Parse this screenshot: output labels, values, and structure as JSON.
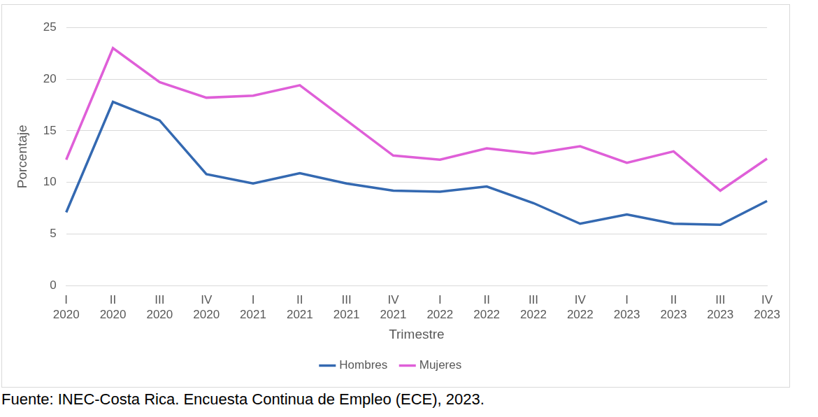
{
  "chart_data": {
    "type": "line",
    "x_label": "Trimestre",
    "y_label": "Porcentaje",
    "source": "Fuente: INEC-Costa Rica. Encuesta Continua de Empleo (ECE), 2023.",
    "categories": [
      [
        "I",
        "2020"
      ],
      [
        "II",
        "2020"
      ],
      [
        "III",
        "2020"
      ],
      [
        "IV",
        "2020"
      ],
      [
        "I",
        "2021"
      ],
      [
        "II",
        "2021"
      ],
      [
        "III",
        "2021"
      ],
      [
        "IV",
        "2021"
      ],
      [
        "I",
        "2022"
      ],
      [
        "II",
        "2022"
      ],
      [
        "III",
        "2022"
      ],
      [
        "IV",
        "2022"
      ],
      [
        "I",
        "2023"
      ],
      [
        "II",
        "2023"
      ],
      [
        "III",
        "2023"
      ],
      [
        "IV",
        "2023"
      ]
    ],
    "series": [
      {
        "name": "Hombres",
        "color": "#3469b1",
        "values": [
          7.1,
          17.8,
          16.0,
          10.8,
          9.9,
          10.9,
          9.9,
          9.2,
          9.1,
          9.6,
          8.0,
          6.0,
          6.9,
          6.0,
          5.9,
          8.2
        ]
      },
      {
        "name": "Mujeres",
        "color": "#df5fd8",
        "values": [
          12.2,
          23.0,
          19.7,
          18.2,
          18.4,
          19.4,
          16.0,
          12.6,
          12.2,
          13.3,
          12.8,
          13.5,
          11.9,
          13.0,
          9.2,
          12.3
        ]
      }
    ],
    "ylim": [
      0,
      25
    ],
    "yticks": [
      0,
      5,
      10,
      15,
      20,
      25
    ],
    "grid": true,
    "legend": "bottom"
  }
}
